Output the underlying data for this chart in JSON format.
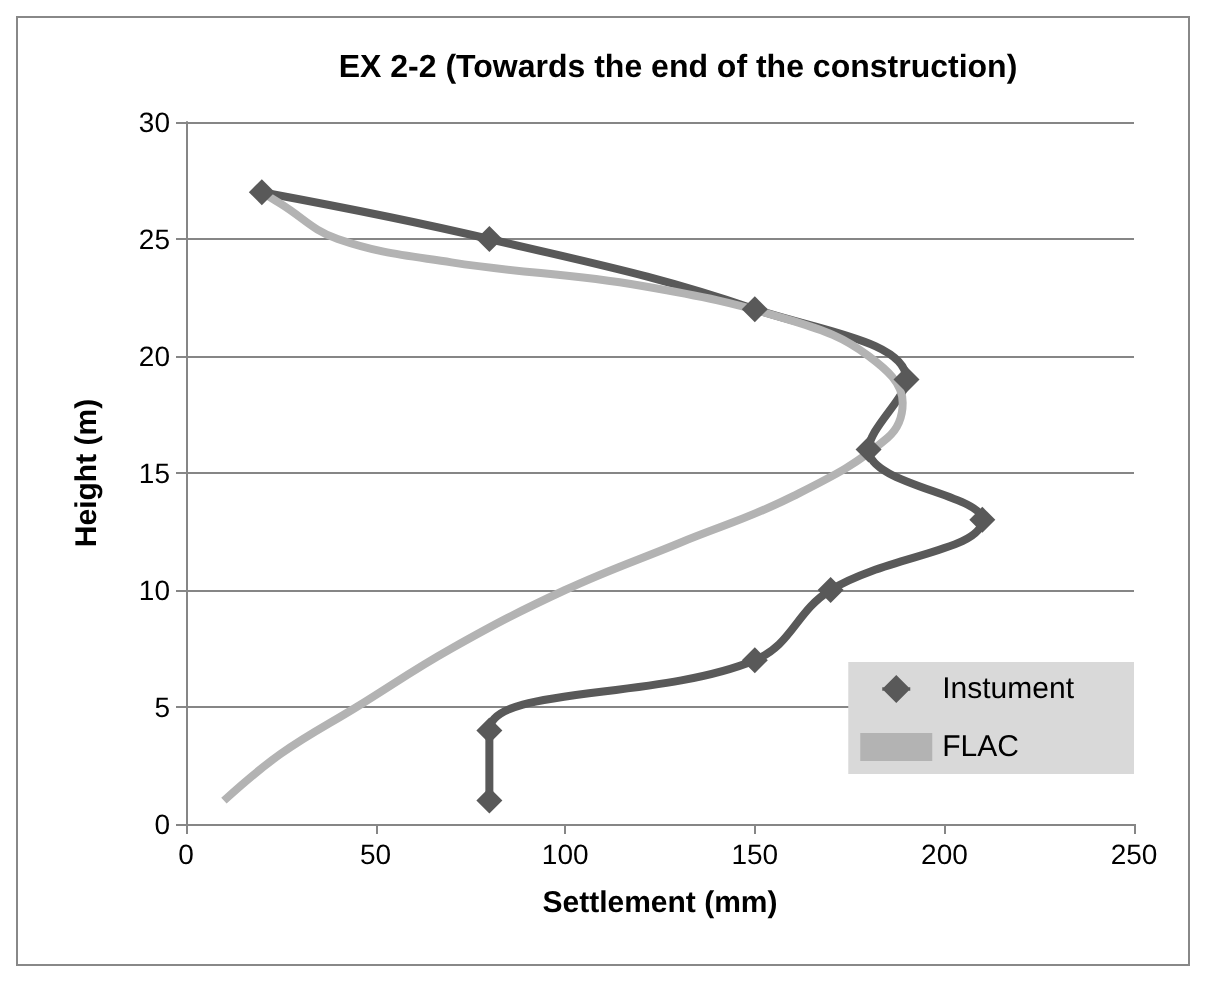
{
  "chart_data": {
    "type": "line",
    "title": "EX 2-2 (Towards the end of the construction)",
    "xlabel": "Settlement (mm)",
    "ylabel": "Height (m)",
    "xlim": [
      0,
      250
    ],
    "xticks": [
      0,
      50,
      100,
      150,
      200,
      250
    ],
    "ylim": [
      0,
      30
    ],
    "yticks": [
      0,
      5,
      10,
      15,
      20,
      25,
      30
    ],
    "grid": "y",
    "legend": "bottom right",
    "series": [
      {
        "name": "Instument",
        "color": "#595959",
        "marker": "diamond",
        "x": [
          20,
          80,
          150,
          190,
          180,
          210,
          170,
          150,
          80,
          80
        ],
        "values": [
          27,
          25,
          22,
          19,
          16,
          13,
          10,
          7,
          4,
          1
        ]
      },
      {
        "name": "FLAC",
        "color": "#b3b3b3",
        "marker": "none",
        "x": [
          10,
          25,
          45,
          70,
          100,
          130,
          160,
          185,
          189,
          180,
          160,
          120,
          70,
          40,
          25,
          20
        ],
        "values": [
          1,
          3,
          5,
          7.5,
          10,
          12,
          14,
          16.5,
          18,
          20,
          21.5,
          23,
          24,
          25,
          26.5,
          27
        ]
      }
    ]
  }
}
